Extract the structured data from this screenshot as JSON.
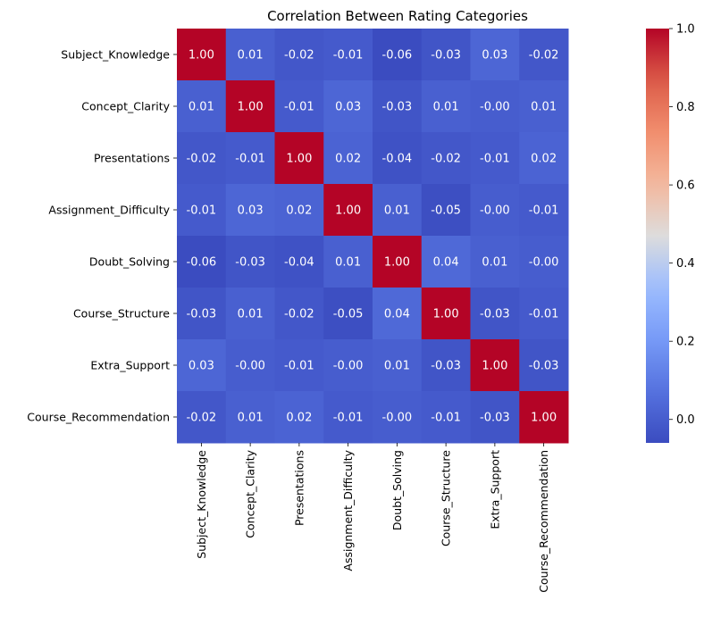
{
  "chart_data": {
    "type": "heatmap",
    "title": "Correlation Between Rating Categories",
    "xlabel": "",
    "ylabel": "",
    "rows": [
      "Subject_Knowledge",
      "Concept_Clarity",
      "Presentations",
      "Assignment_Difficulty",
      "Doubt_Solving",
      "Course_Structure",
      "Extra_Support",
      "Course_Recommendation"
    ],
    "columns": [
      "Subject_Knowledge",
      "Concept_Clarity",
      "Presentations",
      "Assignment_Difficulty",
      "Doubt_Solving",
      "Course_Structure",
      "Extra_Support",
      "Course_Recommendation"
    ],
    "values": [
      [
        1.0,
        0.01,
        -0.02,
        -0.01,
        -0.06,
        -0.03,
        0.03,
        -0.02
      ],
      [
        0.01,
        1.0,
        -0.01,
        0.03,
        -0.03,
        0.01,
        -0.0,
        0.01
      ],
      [
        -0.02,
        -0.01,
        1.0,
        0.02,
        -0.04,
        -0.02,
        -0.01,
        0.02
      ],
      [
        -0.01,
        0.03,
        0.02,
        1.0,
        0.01,
        -0.05,
        -0.0,
        -0.01
      ],
      [
        -0.06,
        -0.03,
        -0.04,
        0.01,
        1.0,
        0.04,
        0.01,
        -0.0
      ],
      [
        -0.03,
        0.01,
        -0.02,
        -0.05,
        0.04,
        1.0,
        -0.03,
        -0.01
      ],
      [
        0.03,
        -0.0,
        -0.01,
        -0.0,
        0.01,
        -0.03,
        1.0,
        -0.03
      ],
      [
        -0.02,
        0.01,
        0.02,
        -0.01,
        -0.0,
        -0.01,
        -0.03,
        1.0
      ]
    ],
    "value_format": "0.00",
    "colormap": "coolwarm",
    "colorbar": {
      "range": [
        -0.06,
        1.0
      ],
      "ticks": [
        0.0,
        0.2,
        0.4,
        0.6,
        0.8,
        1.0
      ],
      "tick_labels": [
        "0.0",
        "0.2",
        "0.4",
        "0.6",
        "0.8",
        "1.0"
      ],
      "placement": "right"
    }
  }
}
